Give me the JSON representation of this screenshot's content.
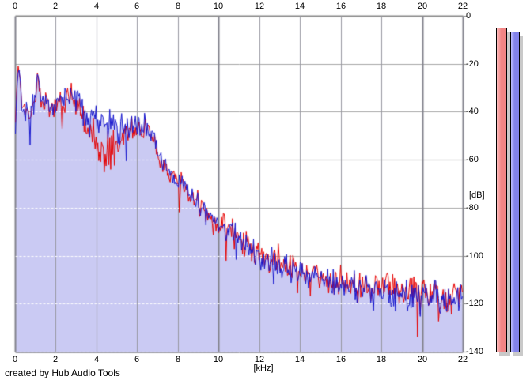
{
  "credit": "created by Hub Audio Tools",
  "chart_data": {
    "type": "line",
    "title": "",
    "xlabel": "[kHz]",
    "ylabel": "[dB]",
    "xlim": [
      0,
      22
    ],
    "ylim": [
      -140,
      0
    ],
    "xticks": [
      0,
      2,
      4,
      6,
      8,
      10,
      12,
      14,
      16,
      18,
      20,
      22
    ],
    "yticks": [
      0,
      -20,
      -40,
      -60,
      -80,
      -100,
      -120,
      -140
    ],
    "grid": true,
    "legend_position": "none",
    "plot_colors": {
      "background": "#ffffff",
      "fill_under_blue": "#cacaf3",
      "grid_horizontal": "#a6a6a6",
      "grid_vertical": "#9898a2",
      "grid_major": "#82828c",
      "grid_dash_on_fill": "#ffffff",
      "axis_frame": "#8a8a8a"
    },
    "series": [
      {
        "name": "spectrum-left-channel",
        "color": "#e60000",
        "envelope_keypoints": [
          [
            0,
            -40
          ],
          [
            0.15,
            -19
          ],
          [
            0.35,
            -37
          ],
          [
            0.7,
            -40
          ],
          [
            0.95,
            -36
          ],
          [
            1.08,
            -22
          ],
          [
            1.25,
            -36
          ],
          [
            1.7,
            -38
          ],
          [
            2.1,
            -36
          ],
          [
            2.5,
            -33
          ],
          [
            2.8,
            -34
          ],
          [
            3.1,
            -40
          ],
          [
            3.5,
            -48
          ],
          [
            4.0,
            -53
          ],
          [
            4.5,
            -56
          ],
          [
            5.0,
            -53
          ],
          [
            5.5,
            -49
          ],
          [
            6.0,
            -45
          ],
          [
            6.5,
            -45
          ],
          [
            6.8,
            -52
          ],
          [
            7.0,
            -59
          ],
          [
            7.5,
            -65
          ],
          [
            8.0,
            -69
          ],
          [
            8.5,
            -73
          ],
          [
            9.0,
            -78
          ],
          [
            9.5,
            -83
          ],
          [
            10.0,
            -86
          ],
          [
            10.5,
            -89
          ],
          [
            11.0,
            -93
          ],
          [
            11.5,
            -96
          ],
          [
            12.0,
            -99
          ],
          [
            12.5,
            -101
          ],
          [
            13.0,
            -102
          ],
          [
            13.5,
            -104
          ],
          [
            14.0,
            -106
          ],
          [
            15.0,
            -109
          ],
          [
            16.0,
            -111
          ],
          [
            17.0,
            -112.5
          ],
          [
            18.0,
            -113.5
          ],
          [
            19.0,
            -114.5
          ],
          [
            20.0,
            -115.5
          ],
          [
            21.0,
            -116.5
          ],
          [
            22.0,
            -117.5
          ]
        ],
        "noise_keypoints": [
          [
            0,
            7
          ],
          [
            0.12,
            3
          ],
          [
            0.3,
            5
          ],
          [
            1.0,
            5
          ],
          [
            1.08,
            3
          ],
          [
            1.3,
            5
          ],
          [
            2.0,
            5
          ],
          [
            3.0,
            6
          ],
          [
            3.5,
            9
          ],
          [
            4.5,
            10
          ],
          [
            5.5,
            8
          ],
          [
            6.0,
            6
          ],
          [
            7.0,
            5
          ],
          [
            8.0,
            5
          ],
          [
            9.0,
            5
          ],
          [
            10.0,
            5.5
          ],
          [
            12.0,
            6
          ],
          [
            14.0,
            6.5
          ],
          [
            16.0,
            7
          ],
          [
            18.0,
            7
          ],
          [
            20.0,
            7
          ],
          [
            22.0,
            7
          ]
        ]
      },
      {
        "name": "spectrum-right-channel",
        "color": "#1515cd",
        "fill": true,
        "envelope_keypoints": [
          [
            0,
            -42
          ],
          [
            0.15,
            -21
          ],
          [
            0.35,
            -38
          ],
          [
            0.7,
            -41
          ],
          [
            0.95,
            -36
          ],
          [
            1.08,
            -23
          ],
          [
            1.25,
            -36
          ],
          [
            1.7,
            -38
          ],
          [
            2.1,
            -36
          ],
          [
            2.5,
            -33
          ],
          [
            2.8,
            -33
          ],
          [
            3.1,
            -36
          ],
          [
            3.5,
            -41
          ],
          [
            4.0,
            -43
          ],
          [
            4.5,
            -45
          ],
          [
            5.0,
            -48
          ],
          [
            5.5,
            -46
          ],
          [
            6.0,
            -44
          ],
          [
            6.5,
            -46
          ],
          [
            6.8,
            -51
          ],
          [
            7.0,
            -58
          ],
          [
            7.5,
            -64
          ],
          [
            8.0,
            -69
          ],
          [
            8.5,
            -74
          ],
          [
            9.0,
            -79
          ],
          [
            9.5,
            -84
          ],
          [
            10.0,
            -87
          ],
          [
            10.5,
            -90
          ],
          [
            11.0,
            -93
          ],
          [
            11.5,
            -97
          ],
          [
            12.0,
            -100
          ],
          [
            12.5,
            -102
          ],
          [
            13.0,
            -103
          ],
          [
            13.5,
            -105
          ],
          [
            14.0,
            -107
          ],
          [
            15.0,
            -110
          ],
          [
            16.0,
            -112
          ],
          [
            17.0,
            -113.5
          ],
          [
            18.0,
            -114.5
          ],
          [
            19.0,
            -115.5
          ],
          [
            20.0,
            -116.5
          ],
          [
            21.0,
            -117.5
          ],
          [
            22.0,
            -118.5
          ]
        ],
        "noise_keypoints": [
          [
            0,
            7
          ],
          [
            0.12,
            3
          ],
          [
            0.3,
            5
          ],
          [
            1.0,
            5
          ],
          [
            1.08,
            3
          ],
          [
            1.3,
            5
          ],
          [
            2.0,
            5
          ],
          [
            3.0,
            6
          ],
          [
            4.0,
            7
          ],
          [
            5.0,
            7
          ],
          [
            6.0,
            6
          ],
          [
            7.0,
            5
          ],
          [
            8.0,
            5
          ],
          [
            9.0,
            5
          ],
          [
            10.0,
            5.5
          ],
          [
            12.0,
            6
          ],
          [
            14.0,
            6.5
          ],
          [
            16.0,
            7
          ],
          [
            18.0,
            7
          ],
          [
            20.0,
            7
          ],
          [
            22.0,
            7
          ]
        ]
      }
    ],
    "noise": {
      "seed": 7,
      "step_khz": 0.045,
      "shared_weight": 0.55,
      "own_weight": 0.6,
      "spike_prob": 0.045,
      "spike_extra_db": 14,
      "spike_env_threshold": -30
    },
    "meters": [
      {
        "name": "level-meter-left",
        "value_db": -5.0,
        "color": "#f28585",
        "highlight": "#ffc0c0",
        "shadow": "#c9c9c9"
      },
      {
        "name": "level-meter-right",
        "value_db": -6.6,
        "color": "#8282ea",
        "highlight": "#bcbcff",
        "shadow": "#c9c9c9"
      }
    ]
  }
}
